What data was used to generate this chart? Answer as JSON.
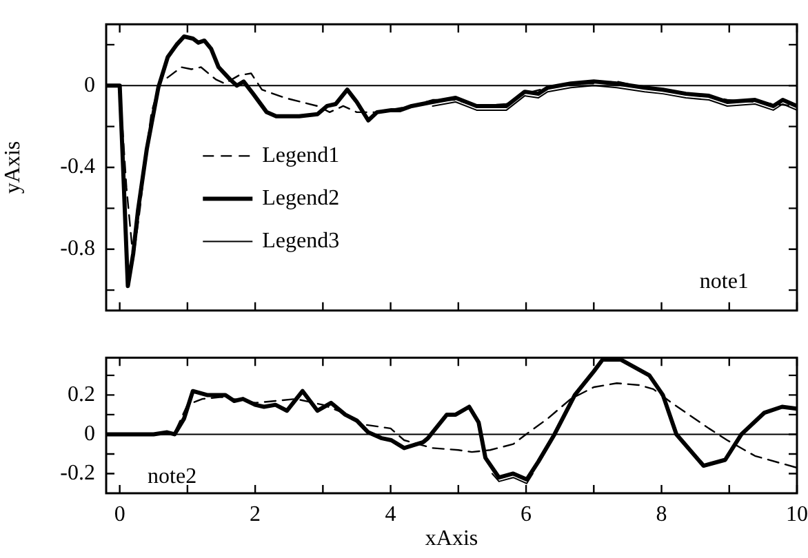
{
  "chart_data": [
    {
      "type": "line",
      "ylabel": "yAxis",
      "xlim": [
        -0.2,
        10
      ],
      "ylim": [
        -1.1,
        0.3
      ],
      "xticks": [
        0,
        {
          "value": 1,
          "label": null
        },
        2,
        {
          "value": 3,
          "label": null
        },
        4,
        {
          "value": 5,
          "label": null
        },
        6,
        {
          "value": 7,
          "label": null
        },
        8,
        {
          "value": 9,
          "label": null
        },
        10
      ],
      "yticks": [
        {
          "value": 0.2,
          "label": null
        },
        0,
        {
          "value": -0.2,
          "label": null
        },
        -0.4,
        {
          "value": -0.6,
          "label": null
        },
        -0.8,
        {
          "value": -1,
          "label": null
        }
      ],
      "tick_labels": "y",
      "legend": "left",
      "marker": "none",
      "annotations": [
        "note1"
      ],
      "ref_lines": [
        {
          "axis": "y",
          "value": 0,
          "color": "#000000"
        }
      ],
      "series": [
        {
          "name": "Legend1",
          "color": "#000000",
          "line_style": "dashed",
          "x": [
            -0.2,
            0,
            0.1,
            0.2,
            0.3,
            0.4,
            0.47,
            0.6,
            0.71,
            0.91,
            1.06,
            1.2,
            1.42,
            1.55,
            1.76,
            1.94,
            2.1,
            2.44,
            2.92,
            3.1,
            3.3,
            3.5,
            3.8,
            4.31,
            4.62,
            4.96,
            5.27,
            5.71,
            5.98,
            6.32,
            6.66,
            7.0,
            7.34,
            7.75,
            8.02,
            8.36,
            8.7,
            8.97,
            9.38,
            9.65,
            10
          ],
          "values": [
            0,
            0,
            -0.5,
            -0.85,
            -0.6,
            -0.3,
            -0.13,
            0.02,
            0.04,
            0.09,
            0.08,
            0.09,
            0.03,
            0.01,
            0.05,
            0.06,
            -0.02,
            -0.06,
            -0.1,
            -0.13,
            -0.1,
            -0.13,
            -0.13,
            -0.1,
            -0.07,
            -0.07,
            -0.1,
            -0.09,
            -0.04,
            -0.01,
            0.01,
            0.01,
            0.02,
            -0.01,
            -0.02,
            -0.04,
            -0.05,
            -0.07,
            -0.08,
            -0.09,
            -0.1
          ]
        },
        {
          "name": "Legend2",
          "color": "#000000",
          "line_style": "solid",
          "x": [
            -0.2,
            0,
            0.05,
            0.12,
            0.2,
            0.27,
            0.4,
            0.57,
            0.71,
            0.84,
            0.95,
            1.08,
            1.16,
            1.25,
            1.35,
            1.46,
            1.63,
            1.73,
            1.83,
            1.97,
            2.17,
            2.31,
            2.65,
            2.92,
            3.06,
            3.19,
            3.36,
            3.5,
            3.67,
            3.8,
            4.01,
            4.14,
            4.31,
            4.62,
            4.96,
            5.27,
            5.71,
            5.98,
            6.18,
            6.32,
            6.66,
            7.0,
            7.34,
            7.75,
            8.02,
            8.36,
            8.7,
            8.97,
            9.38,
            9.65,
            9.79,
            10
          ],
          "values": [
            0,
            0,
            -0.4,
            -0.98,
            -0.82,
            -0.61,
            -0.31,
            -0.01,
            0.14,
            0.2,
            0.24,
            0.23,
            0.21,
            0.22,
            0.18,
            0.09,
            0.03,
            0,
            0.02,
            -0.04,
            -0.13,
            -0.15,
            -0.15,
            -0.14,
            -0.1,
            -0.09,
            -0.02,
            -0.08,
            -0.17,
            -0.13,
            -0.12,
            -0.12,
            -0.1,
            -0.08,
            -0.06,
            -0.1,
            -0.1,
            -0.03,
            -0.04,
            -0.01,
            0.01,
            0.02,
            0.01,
            -0.01,
            -0.02,
            -0.04,
            -0.05,
            -0.08,
            -0.07,
            -0.1,
            -0.07,
            -0.1
          ]
        },
        {
          "name": "Legend3",
          "color": "#000000",
          "line_style": "solid",
          "x": [
            4.62,
            4.96,
            5.27,
            5.71,
            5.98,
            6.18,
            6.32,
            6.66,
            7.0,
            7.34,
            7.75,
            8.02,
            8.36,
            8.7,
            8.97,
            9.38,
            9.65,
            9.79,
            10
          ],
          "values": [
            -0.1,
            -0.08,
            -0.12,
            -0.12,
            -0.05,
            -0.06,
            -0.03,
            -0.01,
            0,
            -0.01,
            -0.03,
            -0.04,
            -0.06,
            -0.07,
            -0.1,
            -0.09,
            -0.12,
            -0.09,
            -0.12
          ]
        }
      ]
    },
    {
      "type": "line",
      "xlabel": "xAxis",
      "xlim": [
        -0.2,
        10
      ],
      "ylim": [
        -0.3,
        0.39
      ],
      "xticks": [
        0,
        {
          "value": 1,
          "label": null
        },
        2,
        {
          "value": 3,
          "label": null
        },
        4,
        {
          "value": 5,
          "label": null
        },
        6,
        {
          "value": 7,
          "label": null
        },
        8,
        {
          "value": 9,
          "label": null
        },
        10
      ],
      "yticks": [
        {
          "value": 0.3,
          "label": null
        },
        0.2,
        {
          "value": 0.1,
          "label": null
        },
        0,
        {
          "value": -0.1,
          "label": null
        },
        -0.2
      ],
      "marker": "none",
      "annotations": [
        "note2"
      ],
      "ref_lines": [
        {
          "axis": "y",
          "value": 0,
          "color": "#000000"
        }
      ],
      "series": [
        {
          "color": "#000000",
          "line_style": "dashed",
          "x": [
            -0.2,
            0,
            0.8,
            1.0,
            1.22,
            1.5,
            2.0,
            2.3,
            2.6,
            3.0,
            3.3,
            3.6,
            4.0,
            4.2,
            4.62,
            5.0,
            5.2,
            5.47,
            5.81,
            6.0,
            6.32,
            6.66,
            7.0,
            7.34,
            7.68,
            7.88,
            8.15,
            8.7,
            8.97,
            9.38,
            9.79,
            10
          ],
          "values": [
            0,
            0,
            0,
            0.15,
            0.18,
            0.19,
            0.16,
            0.17,
            0.18,
            0.15,
            0.11,
            0.05,
            0.03,
            -0.03,
            -0.07,
            -0.08,
            -0.09,
            -0.08,
            -0.05,
            0,
            0.08,
            0.18,
            0.24,
            0.26,
            0.25,
            0.23,
            0.16,
            0.03,
            -0.03,
            -0.11,
            -0.15,
            -0.17
          ]
        },
        {
          "color": "#000000",
          "line_style": "solid",
          "x": [
            -0.2,
            0,
            0.5,
            0.7,
            0.81,
            0.95,
            1.08,
            1.29,
            1.56,
            1.69,
            1.82,
            2.0,
            2.13,
            2.3,
            2.47,
            2.7,
            2.92,
            3.12,
            3.33,
            3.5,
            3.67,
            3.87,
            4.01,
            4.2,
            4.48,
            4.55,
            4.83,
            4.96,
            5.16,
            5.3,
            5.4,
            5.6,
            5.81,
            6.01,
            6.18,
            6.42,
            6.72,
            7.0,
            7.13,
            7.4,
            7.82,
            8.02,
            8.22,
            8.62,
            8.94,
            9.18,
            9.52,
            9.78,
            10
          ],
          "values": [
            0,
            0,
            0,
            0.01,
            0,
            0.08,
            0.22,
            0.2,
            0.2,
            0.17,
            0.18,
            0.15,
            0.14,
            0.15,
            0.12,
            0.22,
            0.12,
            0.16,
            0.1,
            0.07,
            0.01,
            -0.02,
            -0.03,
            -0.07,
            -0.04,
            -0.02,
            0.1,
            0.1,
            0.14,
            0.06,
            -0.12,
            -0.22,
            -0.2,
            -0.23,
            -0.14,
            0,
            0.2,
            0.32,
            0.38,
            0.38,
            0.3,
            0.2,
            0,
            -0.16,
            -0.13,
            0,
            0.11,
            0.14,
            0.13
          ]
        },
        {
          "color": "#000000",
          "line_style": "solid",
          "x": [
            5.5,
            5.6,
            5.81,
            6.01,
            6.1
          ],
          "values": [
            -0.2,
            -0.24,
            -0.22,
            -0.25,
            -0.2
          ]
        }
      ]
    }
  ]
}
